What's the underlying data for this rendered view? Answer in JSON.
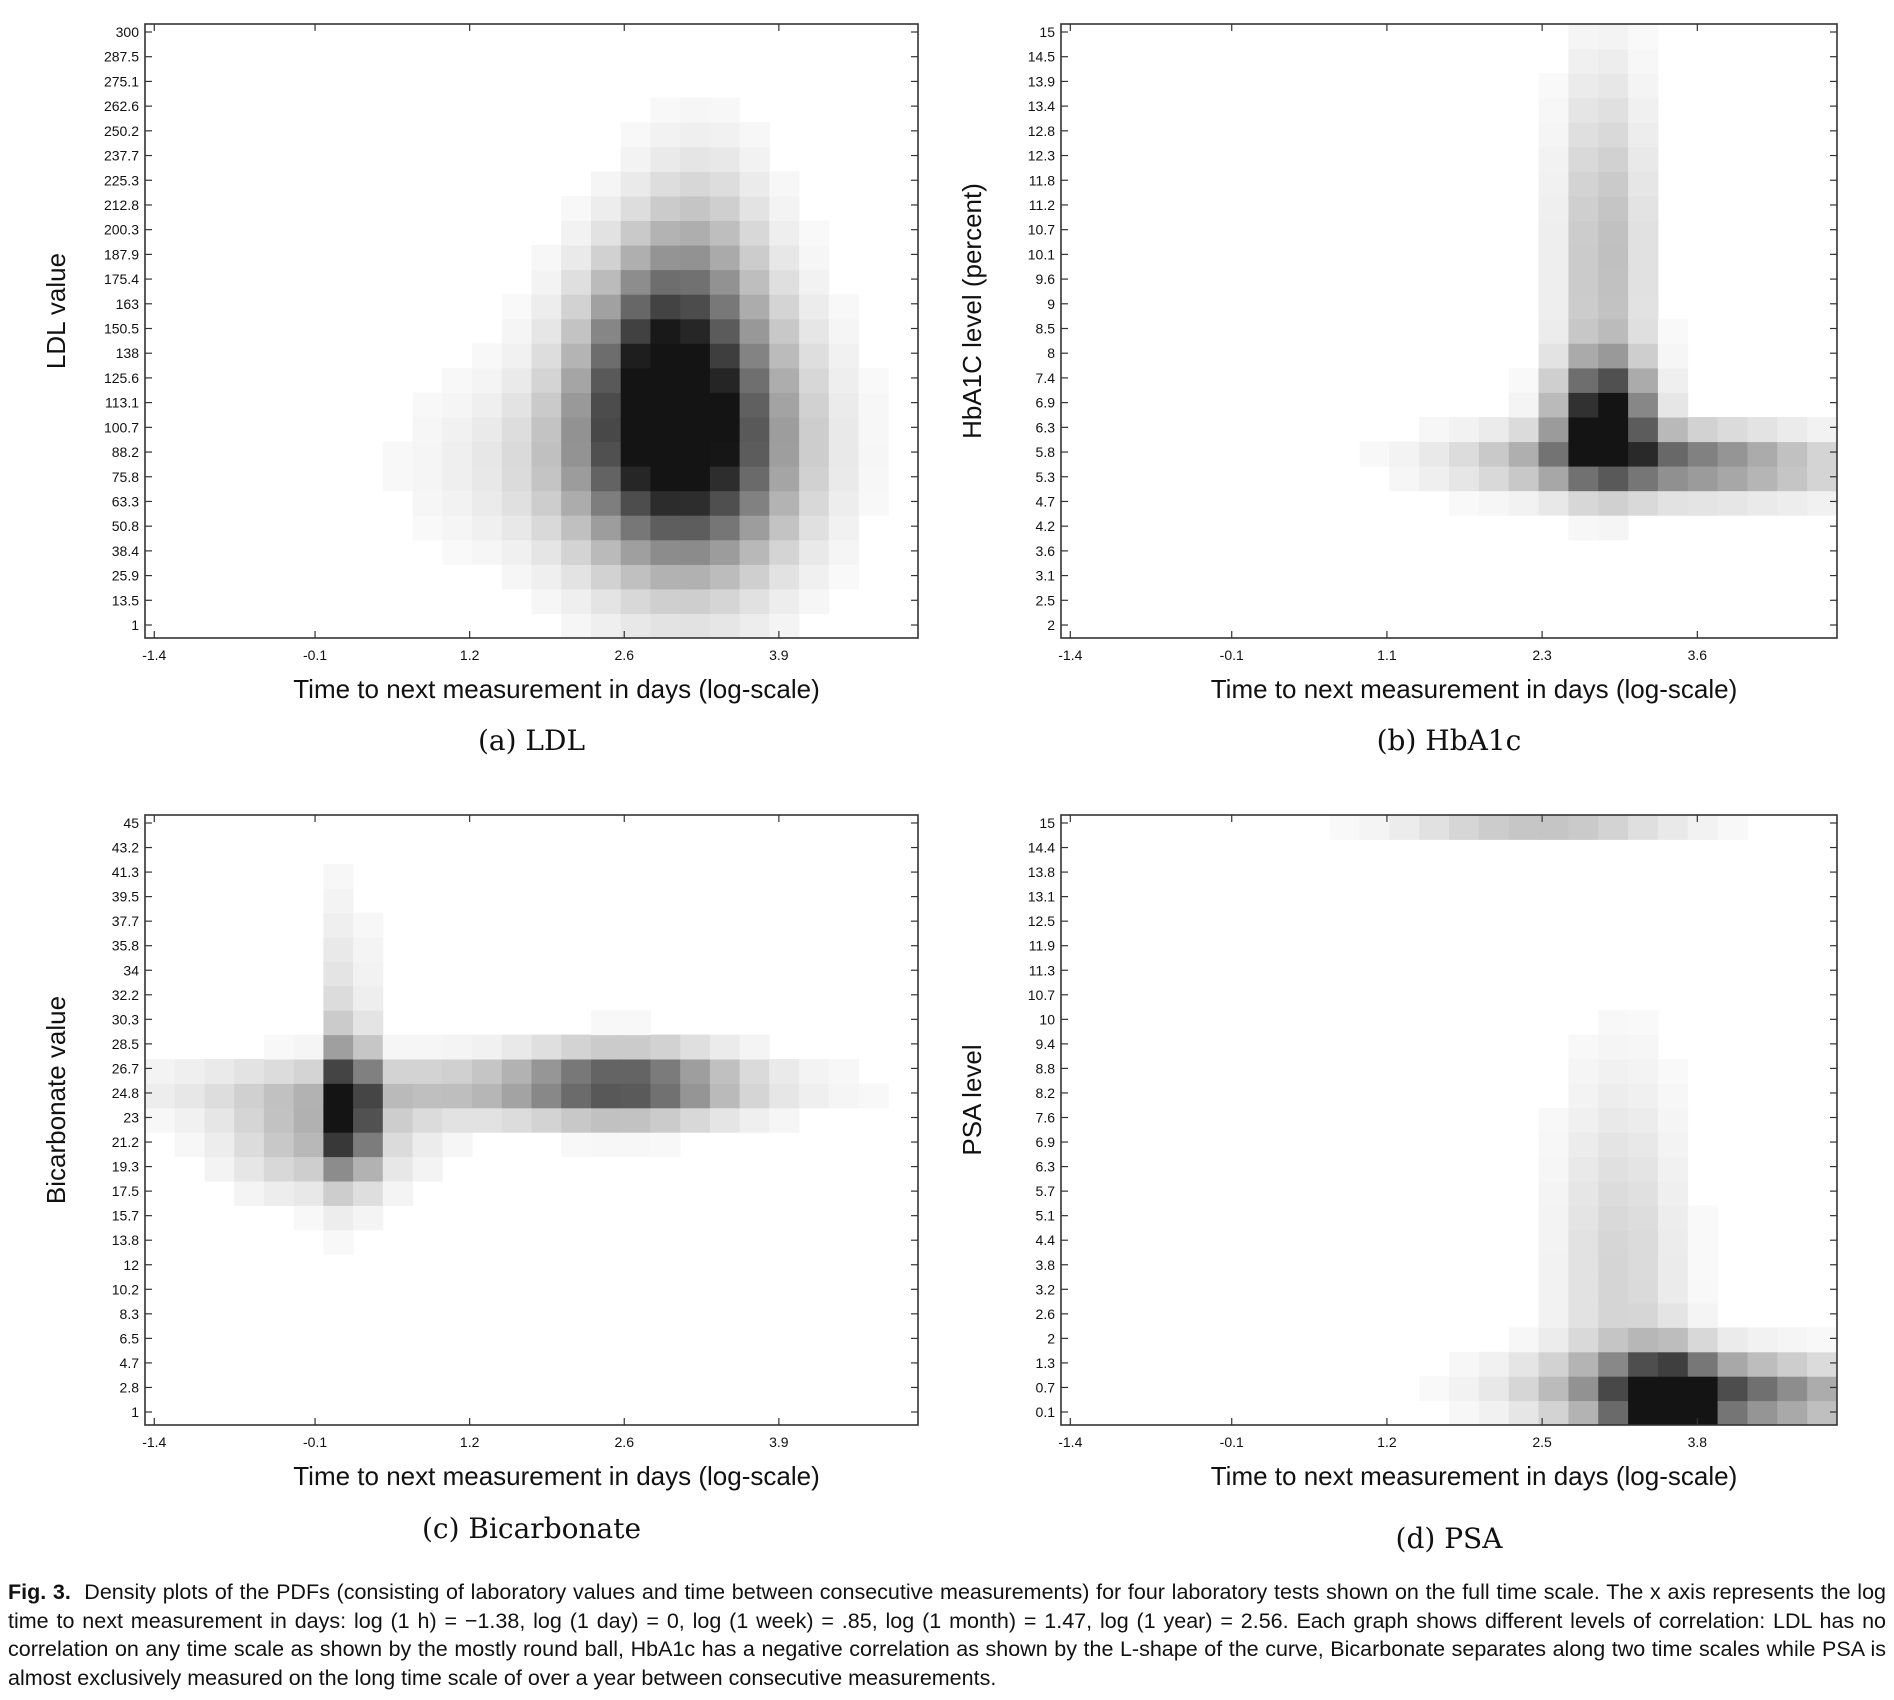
{
  "chart_data": [
    {
      "type": "heatmap",
      "subcaption": "(a)  LDL",
      "xlabel": "Time to next measurement in days (log-scale)",
      "ylabel": "LDL value",
      "xticks": [
        "-1.4",
        "-0.1",
        "1.2",
        "2.6",
        "3.9"
      ],
      "yticks": [
        "1",
        "13.5",
        "25.9",
        "38.4",
        "50.8",
        "63.3",
        "75.8",
        "88.2",
        "100.7",
        "113.1",
        "125.6",
        "138",
        "150.5",
        "163",
        "175.4",
        "187.9",
        "200.3",
        "212.8",
        "225.3",
        "237.7",
        "250.2",
        "262.6",
        "275.1",
        "287.5",
        "300"
      ],
      "grid": false,
      "density_peak": {
        "x": 3.0,
        "y": 95
      },
      "description_of_shape": "round ball"
    },
    {
      "type": "heatmap",
      "subcaption": "(b)  HbA1c",
      "xlabel": "Time to next measurement in days (log-scale)",
      "ylabel": "HbA1C level (percent)",
      "xticks": [
        "-1.4",
        "-0.1",
        "1.1",
        "2.3",
        "3.6"
      ],
      "yticks": [
        "2",
        "2.5",
        "3.1",
        "3.6",
        "4.2",
        "4.7",
        "5.3",
        "5.8",
        "6.3",
        "6.9",
        "7.4",
        "8",
        "8.5",
        "9",
        "9.6",
        "10.1",
        "10.7",
        "11.2",
        "11.8",
        "12.3",
        "12.8",
        "13.4",
        "13.9",
        "14.5",
        "15"
      ],
      "grid": false,
      "density_peak": {
        "x": 2.8,
        "y": 7.2
      },
      "description_of_shape": "L-shape"
    },
    {
      "type": "heatmap",
      "subcaption": "(c)  Bicarbonate",
      "xlabel": "Time to next measurement in days (log-scale)",
      "ylabel": "Bicarbonate value",
      "xticks": [
        "-1.4",
        "-0.1",
        "1.2",
        "2.6",
        "3.9"
      ],
      "yticks": [
        "1",
        "2.8",
        "4.7",
        "6.5",
        "8.3",
        "10.2",
        "12",
        "13.8",
        "15.7",
        "17.5",
        "19.3",
        "21.2",
        "23",
        "24.8",
        "26.7",
        "28.5",
        "30.3",
        "32.2",
        "34",
        "35.8",
        "37.7",
        "39.5",
        "41.3",
        "43.2",
        "45"
      ],
      "grid": false,
      "density_peak": {
        "x": 0.3,
        "y": 24.8
      },
      "description_of_shape": "two time scales"
    },
    {
      "type": "heatmap",
      "subcaption": "(d)  PSA",
      "xlabel": "Time to next measurement in days (log-scale)",
      "ylabel": "PSA level",
      "xticks": [
        "-1.4",
        "-0.1",
        "1.2",
        "2.5",
        "3.8"
      ],
      "yticks": [
        "0.1",
        "0.7",
        "1.3",
        "2",
        "2.6",
        "3.2",
        "3.8",
        "4.4",
        "5.1",
        "5.7",
        "6.3",
        "6.9",
        "7.6",
        "8.2",
        "8.8",
        "9.4",
        "10",
        "10.7",
        "11.3",
        "11.9",
        "12.5",
        "13.1",
        "13.8",
        "14.4",
        "15"
      ],
      "grid": false,
      "density_peak": {
        "x": 3.5,
        "y": 0.1
      },
      "description_of_shape": "long time scale"
    }
  ],
  "caption": {
    "label": "Fig. 3.",
    "text": "Density plots of the PDFs (consisting of laboratory values and time between consecutive measurements) for four laboratory tests shown on the full time scale. The x axis represents the log time to next measurement in days: log (1 h) = −1.38, log (1 day) = 0, log (1 week) = .85, log (1 month) = 1.47, log (1 year) = 2.56. Each graph shows different levels of correlation: LDL has no correlation on any time scale as shown by the mostly round ball, HbA1c has a negative correlation as shown by the L-shape of the curve, Bicarbonate separates along two time scales while PSA is almost exclusively measured on the long time scale of over a year between consecutive measurements."
  }
}
